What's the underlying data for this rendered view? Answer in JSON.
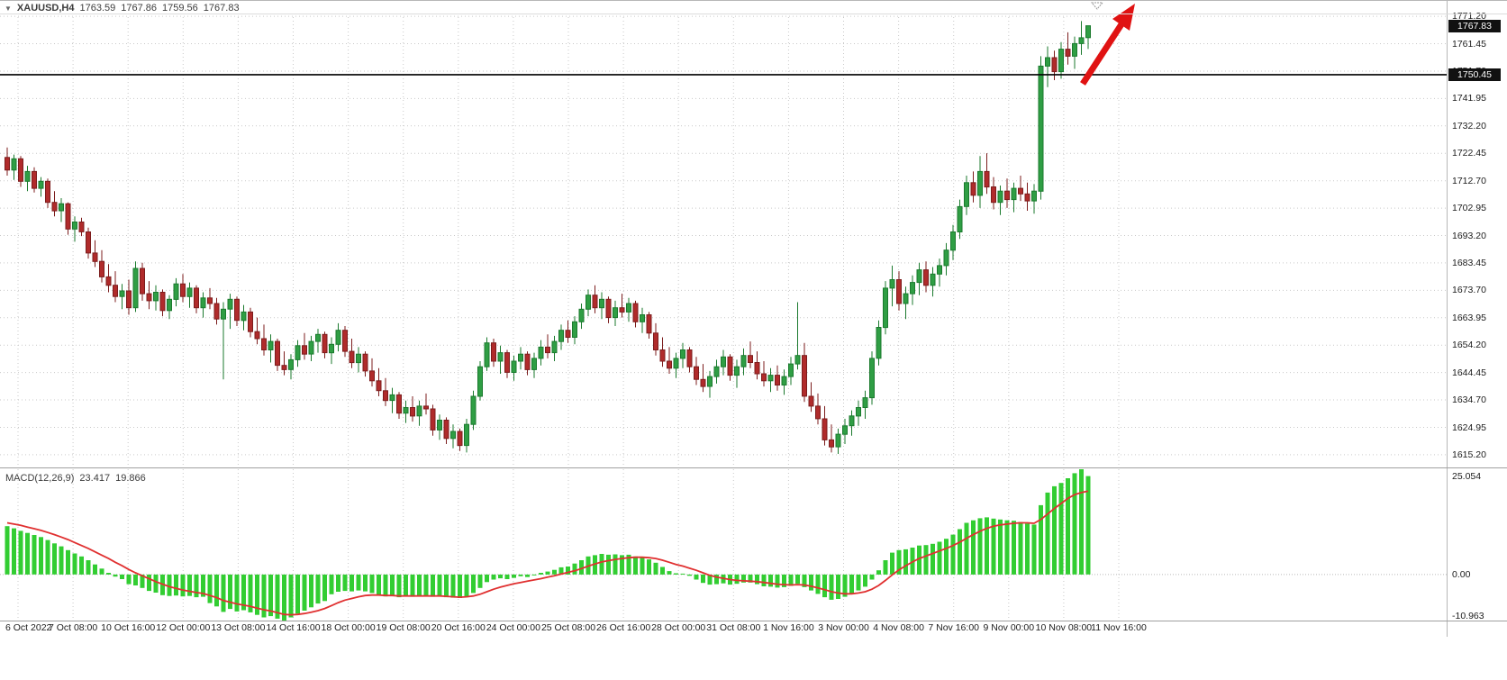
{
  "header": {
    "dropdown_icon": "▼",
    "symbol": "XAUUSD,H4",
    "open": "1763.59",
    "high": "1767.86",
    "low": "1759.56",
    "close": "1767.83"
  },
  "macd_label": {
    "title": "MACD(12,26,9)",
    "value": "23.417",
    "signal": "19.866"
  },
  "price_axis": {
    "current_badge": "1767.83",
    "line_badge": "1750.45",
    "macd_max": "25.054",
    "macd_zero": "0.00",
    "macd_min": "-10.963"
  },
  "colors": {
    "bull": "#2f9e44",
    "bull_border": "#1b7a2e",
    "bear": "#b02b2b",
    "bear_border": "#7c1d1d",
    "histogram": "#32cd32",
    "signal_line": "#e03030",
    "grid": "#c9c9c9",
    "zero_line": "#b8b8b8",
    "badge_bg": "#111111",
    "badge_text": "#ffffff",
    "hline": "#000000",
    "arrow": "#e01212"
  },
  "annotations": {
    "trend_arrow": {
      "type": "arrow",
      "direction": "up-right"
    },
    "horizontal_line_price": 1750.45
  },
  "chart_data": {
    "type": "candlestick",
    "symbol": "XAUUSD",
    "timeframe": "H4",
    "ohlc_current": {
      "open": 1763.59,
      "high": 1767.86,
      "low": 1759.56,
      "close": 1767.83
    },
    "last_price": 1767.83,
    "horizontal_line": 1750.45,
    "price_scale": {
      "top": 1772.2,
      "bottom": 1611.0
    },
    "y_tick_labels": [
      "1771.20",
      "1761.45",
      "1751.70",
      "1741.95",
      "1732.20",
      "1722.45",
      "1712.70",
      "1702.95",
      "1693.20",
      "1683.45",
      "1673.70",
      "1663.95",
      "1654.20",
      "1644.45",
      "1634.70",
      "1624.95",
      "1615.20"
    ],
    "x_tick_labels": [
      "6 Oct 2022",
      "7 Oct 08:00",
      "10 Oct 16:00",
      "12 Oct 00:00",
      "13 Oct 08:00",
      "14 Oct 16:00",
      "18 Oct 00:00",
      "19 Oct 08:00",
      "20 Oct 16:00",
      "24 Oct 00:00",
      "25 Oct 08:00",
      "26 Oct 16:00",
      "28 Oct 00:00",
      "31 Oct 08:00",
      "1 Nov 16:00",
      "3 Nov 00:00",
      "4 Nov 08:00",
      "7 Nov 16:00",
      "9 Nov 00:00",
      "10 Nov 08:00",
      "11 Nov 16:00"
    ],
    "candles_ohlc": [
      [
        1721.0,
        1724.5,
        1714.5,
        1716.5
      ],
      [
        1716.5,
        1722.0,
        1713.0,
        1720.5
      ],
      [
        1720.5,
        1721.5,
        1710.5,
        1712.5
      ],
      [
        1712.5,
        1718.0,
        1709.0,
        1716.0
      ],
      [
        1716.0,
        1717.5,
        1708.5,
        1710.0
      ],
      [
        1710.0,
        1714.0,
        1707.0,
        1712.5
      ],
      [
        1712.5,
        1713.5,
        1703.0,
        1705.0
      ],
      [
        1705.0,
        1709.0,
        1700.0,
        1702.0
      ],
      [
        1702.0,
        1706.5,
        1698.0,
        1704.5
      ],
      [
        1704.5,
        1705.0,
        1693.5,
        1695.5
      ],
      [
        1695.5,
        1700.0,
        1691.0,
        1698.0
      ],
      [
        1698.0,
        1699.5,
        1693.0,
        1694.5
      ],
      [
        1694.5,
        1696.0,
        1685.0,
        1687.0
      ],
      [
        1687.0,
        1691.5,
        1682.0,
        1684.0
      ],
      [
        1684.0,
        1688.0,
        1676.5,
        1678.5
      ],
      [
        1678.5,
        1683.0,
        1673.0,
        1675.5
      ],
      [
        1675.5,
        1680.5,
        1669.5,
        1671.5
      ],
      [
        1671.5,
        1676.0,
        1667.0,
        1673.5
      ],
      [
        1673.5,
        1677.5,
        1665.0,
        1667.5
      ],
      [
        1667.5,
        1684.0,
        1666.0,
        1681.5
      ],
      [
        1681.5,
        1683.5,
        1670.0,
        1672.5
      ],
      [
        1672.5,
        1677.0,
        1667.0,
        1670.0
      ],
      [
        1670.0,
        1675.5,
        1666.5,
        1673.0
      ],
      [
        1673.0,
        1674.0,
        1664.5,
        1666.5
      ],
      [
        1666.5,
        1672.0,
        1663.5,
        1670.5
      ],
      [
        1670.5,
        1678.0,
        1668.0,
        1676.0
      ],
      [
        1676.0,
        1679.5,
        1669.5,
        1671.5
      ],
      [
        1671.5,
        1676.5,
        1667.5,
        1674.5
      ],
      [
        1674.5,
        1675.5,
        1665.5,
        1667.5
      ],
      [
        1667.5,
        1673.0,
        1664.0,
        1671.0
      ],
      [
        1671.0,
        1674.5,
        1667.0,
        1669.0
      ],
      [
        1669.0,
        1671.0,
        1661.5,
        1663.5
      ],
      [
        1663.5,
        1669.5,
        1642.0,
        1667.0
      ],
      [
        1667.0,
        1672.5,
        1660.0,
        1670.5
      ],
      [
        1670.5,
        1671.5,
        1661.0,
        1663.0
      ],
      [
        1663.0,
        1668.5,
        1659.5,
        1666.0
      ],
      [
        1666.0,
        1667.5,
        1657.0,
        1659.0
      ],
      [
        1659.0,
        1664.0,
        1654.5,
        1656.5
      ],
      [
        1656.5,
        1661.5,
        1650.5,
        1652.5
      ],
      [
        1652.5,
        1658.0,
        1648.0,
        1655.5
      ],
      [
        1655.5,
        1656.5,
        1645.0,
        1647.0
      ],
      [
        1647.0,
        1652.0,
        1643.5,
        1645.5
      ],
      [
        1645.5,
        1651.0,
        1642.0,
        1649.0
      ],
      [
        1649.0,
        1656.0,
        1646.5,
        1654.0
      ],
      [
        1654.0,
        1658.5,
        1649.0,
        1651.0
      ],
      [
        1651.0,
        1657.5,
        1648.5,
        1655.5
      ],
      [
        1655.5,
        1660.0,
        1651.5,
        1658.0
      ],
      [
        1658.0,
        1659.0,
        1649.5,
        1651.5
      ],
      [
        1651.5,
        1657.0,
        1647.5,
        1654.5
      ],
      [
        1654.5,
        1662.0,
        1652.0,
        1659.5
      ],
      [
        1659.5,
        1661.0,
        1650.0,
        1652.0
      ],
      [
        1652.0,
        1656.5,
        1646.0,
        1648.0
      ],
      [
        1648.0,
        1653.5,
        1644.5,
        1651.0
      ],
      [
        1651.0,
        1652.0,
        1643.0,
        1645.0
      ],
      [
        1645.0,
        1649.5,
        1639.5,
        1641.5
      ],
      [
        1641.5,
        1646.0,
        1636.0,
        1638.0
      ],
      [
        1638.0,
        1642.5,
        1632.5,
        1634.5
      ],
      [
        1634.5,
        1639.0,
        1630.0,
        1636.5
      ],
      [
        1636.5,
        1637.5,
        1628.0,
        1630.0
      ],
      [
        1630.0,
        1634.5,
        1626.5,
        1632.0
      ],
      [
        1632.0,
        1636.0,
        1627.0,
        1629.0
      ],
      [
        1629.0,
        1634.5,
        1625.5,
        1632.5
      ],
      [
        1632.5,
        1637.0,
        1629.5,
        1631.5
      ],
      [
        1631.5,
        1633.0,
        1622.0,
        1624.0
      ],
      [
        1624.0,
        1629.5,
        1620.5,
        1627.5
      ],
      [
        1627.5,
        1628.5,
        1619.0,
        1621.0
      ],
      [
        1621.0,
        1626.0,
        1617.5,
        1623.5
      ],
      [
        1623.5,
        1624.5,
        1616.5,
        1618.5
      ],
      [
        1618.5,
        1628.0,
        1616.0,
        1626.0
      ],
      [
        1626.0,
        1638.0,
        1624.0,
        1636.0
      ],
      [
        1636.0,
        1648.5,
        1634.5,
        1646.5
      ],
      [
        1646.5,
        1657.0,
        1645.0,
        1655.0
      ],
      [
        1655.0,
        1656.5,
        1646.5,
        1648.5
      ],
      [
        1648.5,
        1654.0,
        1644.0,
        1651.5
      ],
      [
        1651.5,
        1652.5,
        1642.5,
        1644.5
      ],
      [
        1644.5,
        1650.5,
        1641.5,
        1648.5
      ],
      [
        1648.5,
        1653.5,
        1645.5,
        1651.0
      ],
      [
        1651.0,
        1652.0,
        1643.5,
        1645.5
      ],
      [
        1645.5,
        1651.5,
        1642.5,
        1649.5
      ],
      [
        1649.5,
        1656.0,
        1647.0,
        1653.5
      ],
      [
        1653.5,
        1658.0,
        1649.5,
        1651.5
      ],
      [
        1651.5,
        1657.5,
        1648.5,
        1655.5
      ],
      [
        1655.5,
        1661.5,
        1652.5,
        1659.5
      ],
      [
        1659.5,
        1663.0,
        1655.0,
        1657.0
      ],
      [
        1657.0,
        1664.5,
        1654.5,
        1662.5
      ],
      [
        1662.5,
        1669.0,
        1660.0,
        1667.0
      ],
      [
        1667.0,
        1674.0,
        1664.5,
        1672.0
      ],
      [
        1672.0,
        1675.5,
        1665.5,
        1667.5
      ],
      [
        1667.5,
        1673.0,
        1663.5,
        1670.5
      ],
      [
        1670.5,
        1671.5,
        1662.0,
        1664.0
      ],
      [
        1664.0,
        1670.0,
        1661.0,
        1667.5
      ],
      [
        1667.5,
        1672.5,
        1664.0,
        1666.0
      ],
      [
        1666.0,
        1671.0,
        1662.5,
        1669.0
      ],
      [
        1669.0,
        1670.0,
        1660.5,
        1662.5
      ],
      [
        1662.5,
        1667.5,
        1658.5,
        1665.0
      ],
      [
        1665.0,
        1666.0,
        1656.5,
        1658.5
      ],
      [
        1658.5,
        1662.0,
        1650.5,
        1652.5
      ],
      [
        1652.5,
        1657.0,
        1646.5,
        1648.5
      ],
      [
        1648.5,
        1653.5,
        1644.0,
        1646.0
      ],
      [
        1646.0,
        1651.5,
        1642.5,
        1649.5
      ],
      [
        1649.5,
        1655.0,
        1646.0,
        1652.5
      ],
      [
        1652.5,
        1653.5,
        1644.5,
        1646.5
      ],
      [
        1646.5,
        1650.0,
        1640.0,
        1642.0
      ],
      [
        1642.0,
        1647.5,
        1637.5,
        1639.5
      ],
      [
        1639.5,
        1645.0,
        1635.5,
        1643.0
      ],
      [
        1643.0,
        1649.0,
        1640.5,
        1646.5
      ],
      [
        1646.5,
        1652.5,
        1643.5,
        1650.0
      ],
      [
        1650.0,
        1651.0,
        1641.5,
        1643.5
      ],
      [
        1643.5,
        1649.0,
        1639.0,
        1646.5
      ],
      [
        1646.5,
        1653.0,
        1643.5,
        1650.5
      ],
      [
        1650.5,
        1655.5,
        1646.0,
        1648.0
      ],
      [
        1648.0,
        1652.0,
        1642.0,
        1644.0
      ],
      [
        1644.0,
        1648.5,
        1639.5,
        1641.5
      ],
      [
        1641.5,
        1646.0,
        1637.5,
        1643.5
      ],
      [
        1643.5,
        1647.0,
        1638.0,
        1640.0
      ],
      [
        1640.0,
        1645.5,
        1636.5,
        1643.0
      ],
      [
        1643.0,
        1650.0,
        1640.0,
        1647.5
      ],
      [
        1647.5,
        1669.5,
        1645.5,
        1650.5
      ],
      [
        1650.5,
        1655.0,
        1634.0,
        1636.0
      ],
      [
        1636.0,
        1641.0,
        1630.5,
        1632.5
      ],
      [
        1632.5,
        1637.0,
        1626.0,
        1628.0
      ],
      [
        1628.0,
        1632.5,
        1618.5,
        1620.5
      ],
      [
        1620.5,
        1626.0,
        1616.0,
        1618.0
      ],
      [
        1618.0,
        1624.5,
        1615.5,
        1622.5
      ],
      [
        1622.5,
        1628.0,
        1619.0,
        1625.5
      ],
      [
        1625.5,
        1631.0,
        1622.0,
        1629.0
      ],
      [
        1629.0,
        1634.5,
        1625.5,
        1632.0
      ],
      [
        1632.0,
        1638.0,
        1628.0,
        1635.5
      ],
      [
        1635.5,
        1652.0,
        1633.0,
        1649.5
      ],
      [
        1649.5,
        1663.0,
        1647.0,
        1660.5
      ],
      [
        1660.5,
        1677.0,
        1658.0,
        1674.5
      ],
      [
        1674.5,
        1682.5,
        1668.0,
        1677.5
      ],
      [
        1677.5,
        1680.5,
        1666.5,
        1669.0
      ],
      [
        1669.0,
        1675.0,
        1663.5,
        1672.5
      ],
      [
        1672.5,
        1679.0,
        1668.5,
        1676.5
      ],
      [
        1676.5,
        1683.5,
        1672.0,
        1681.0
      ],
      [
        1681.0,
        1684.0,
        1673.0,
        1675.5
      ],
      [
        1675.5,
        1682.0,
        1671.5,
        1679.5
      ],
      [
        1679.5,
        1685.0,
        1675.0,
        1682.5
      ],
      [
        1682.5,
        1690.5,
        1679.0,
        1688.0
      ],
      [
        1688.0,
        1697.0,
        1684.5,
        1694.5
      ],
      [
        1694.5,
        1706.0,
        1692.0,
        1703.5
      ],
      [
        1703.5,
        1714.5,
        1700.5,
        1712.0
      ],
      [
        1712.0,
        1716.0,
        1705.0,
        1707.5
      ],
      [
        1707.5,
        1721.5,
        1703.0,
        1716.0
      ],
      [
        1716.0,
        1722.5,
        1708.0,
        1710.5
      ],
      [
        1710.5,
        1714.0,
        1702.5,
        1705.0
      ],
      [
        1705.0,
        1711.0,
        1700.5,
        1709.0
      ],
      [
        1709.0,
        1713.5,
        1703.0,
        1706.0
      ],
      [
        1706.0,
        1712.0,
        1701.5,
        1710.0
      ],
      [
        1710.0,
        1714.5,
        1705.5,
        1708.0
      ],
      [
        1708.0,
        1712.0,
        1702.0,
        1705.5
      ],
      [
        1705.5,
        1711.5,
        1701.0,
        1709.0
      ],
      [
        1709.0,
        1757.0,
        1706.0,
        1753.5
      ],
      [
        1753.5,
        1760.5,
        1746.0,
        1756.5
      ],
      [
        1756.5,
        1759.0,
        1748.5,
        1751.5
      ],
      [
        1751.5,
        1762.0,
        1749.0,
        1759.5
      ],
      [
        1759.5,
        1765.5,
        1754.0,
        1757.0
      ],
      [
        1757.0,
        1764.0,
        1752.5,
        1761.5
      ],
      [
        1761.5,
        1769.5,
        1757.5,
        1763.59
      ],
      [
        1763.59,
        1767.86,
        1759.56,
        1767.83
      ]
    ],
    "macd": {
      "name": "MACD",
      "params": "12,26,9",
      "value": 23.417,
      "signal_value": 19.866,
      "scale_max": 25.054,
      "scale_min": -10.963,
      "histogram": [
        11.5,
        11.0,
        10.4,
        9.9,
        9.4,
        8.9,
        8.2,
        7.4,
        6.7,
        5.8,
        5.0,
        4.3,
        3.4,
        2.4,
        1.4,
        0.4,
        -0.5,
        -1.1,
        -2.3,
        -2.6,
        -3.2,
        -3.9,
        -4.3,
        -4.9,
        -5.1,
        -5.0,
        -5.2,
        -5.1,
        -5.4,
        -5.3,
        -6.8,
        -7.6,
        -8.9,
        -8.2,
        -8.8,
        -8.5,
        -9.0,
        -9.6,
        -10.2,
        -9.9,
        -10.5,
        -10.963,
        -10.2,
        -9.3,
        -8.6,
        -7.8,
        -6.9,
        -6.3,
        -4.7,
        -4.1,
        -3.9,
        -4.0,
        -3.8,
        -4.0,
        -4.4,
        -4.8,
        -5.2,
        -5.1,
        -5.4,
        -5.2,
        -5.3,
        -5.1,
        -5.0,
        -5.3,
        -5.1,
        -5.4,
        -5.5,
        -5.6,
        -5.2,
        -4.4,
        -3.2,
        -1.8,
        -1.2,
        -0.9,
        -1.1,
        -0.8,
        -0.4,
        -0.6,
        -0.2,
        0.4,
        0.7,
        1.1,
        1.7,
        1.9,
        2.6,
        3.4,
        4.3,
        4.6,
        4.9,
        4.7,
        4.8,
        4.6,
        4.7,
        4.3,
        4.1,
        3.6,
        2.8,
        1.8,
        0.8,
        0.3,
        0.2,
        -0.3,
        -1.2,
        -2.0,
        -2.4,
        -2.3,
        -2.1,
        -2.4,
        -2.2,
        -1.9,
        -1.9,
        -2.3,
        -2.8,
        -2.9,
        -3.1,
        -3.0,
        -2.7,
        -2.2,
        -3.0,
        -3.8,
        -4.6,
        -5.4,
        -6.0,
        -5.8,
        -5.3,
        -4.6,
        -3.8,
        -2.9,
        -1.2,
        1.0,
        3.4,
        5.2,
        5.8,
        6.0,
        6.4,
        6.9,
        7.0,
        7.3,
        7.8,
        8.5,
        9.5,
        10.8,
        12.3,
        12.9,
        13.4,
        13.6,
        13.3,
        13.1,
        12.9,
        12.8,
        12.5,
        12.1,
        11.9,
        16.5,
        19.5,
        21.0,
        21.8,
        22.9,
        24.1,
        25.054,
        23.417
      ],
      "signal": [
        12.3,
        12.0,
        11.7,
        11.3,
        10.9,
        10.5,
        10.0,
        9.5,
        8.9,
        8.3,
        7.6,
        6.9,
        6.2,
        5.4,
        4.6,
        3.8,
        2.9,
        2.1,
        1.2,
        0.4,
        -0.3,
        -1.0,
        -1.7,
        -2.3,
        -2.9,
        -3.3,
        -3.7,
        -4.0,
        -4.3,
        -4.5,
        -5.0,
        -5.5,
        -6.2,
        -6.6,
        -7.0,
        -7.3,
        -7.6,
        -8.0,
        -8.4,
        -8.7,
        -9.1,
        -9.5,
        -9.6,
        -9.5,
        -9.3,
        -9.0,
        -8.6,
        -8.1,
        -7.4,
        -6.7,
        -6.1,
        -5.7,
        -5.3,
        -5.0,
        -4.9,
        -4.9,
        -5.0,
        -5.0,
        -5.1,
        -5.1,
        -5.1,
        -5.1,
        -5.1,
        -5.1,
        -5.1,
        -5.2,
        -5.3,
        -5.4,
        -5.3,
        -5.1,
        -4.7,
        -4.1,
        -3.5,
        -3.0,
        -2.6,
        -2.2,
        -1.9,
        -1.6,
        -1.3,
        -1.0,
        -0.6,
        -0.3,
        0.1,
        0.5,
        0.9,
        1.4,
        2.0,
        2.5,
        3.0,
        3.3,
        3.6,
        3.8,
        4.0,
        4.1,
        4.1,
        4.0,
        3.8,
        3.4,
        2.9,
        2.4,
        2.0,
        1.5,
        1.0,
        0.4,
        -0.2,
        -0.6,
        -0.9,
        -1.2,
        -1.4,
        -1.5,
        -1.6,
        -1.7,
        -1.9,
        -2.1,
        -2.3,
        -2.4,
        -2.5,
        -2.4,
        -2.5,
        -2.8,
        -3.2,
        -3.6,
        -4.1,
        -4.4,
        -4.6,
        -4.6,
        -4.4,
        -4.1,
        -3.5,
        -2.6,
        -1.4,
        -0.1,
        1.1,
        2.1,
        3.0,
        3.8,
        4.4,
        5.0,
        5.6,
        6.2,
        6.9,
        7.7,
        8.6,
        9.5,
        10.3,
        11.0,
        11.5,
        11.8,
        12.0,
        12.2,
        12.3,
        12.3,
        12.2,
        13.1,
        14.4,
        15.7,
        16.9,
        18.1,
        19.0,
        19.5,
        19.866
      ]
    }
  }
}
